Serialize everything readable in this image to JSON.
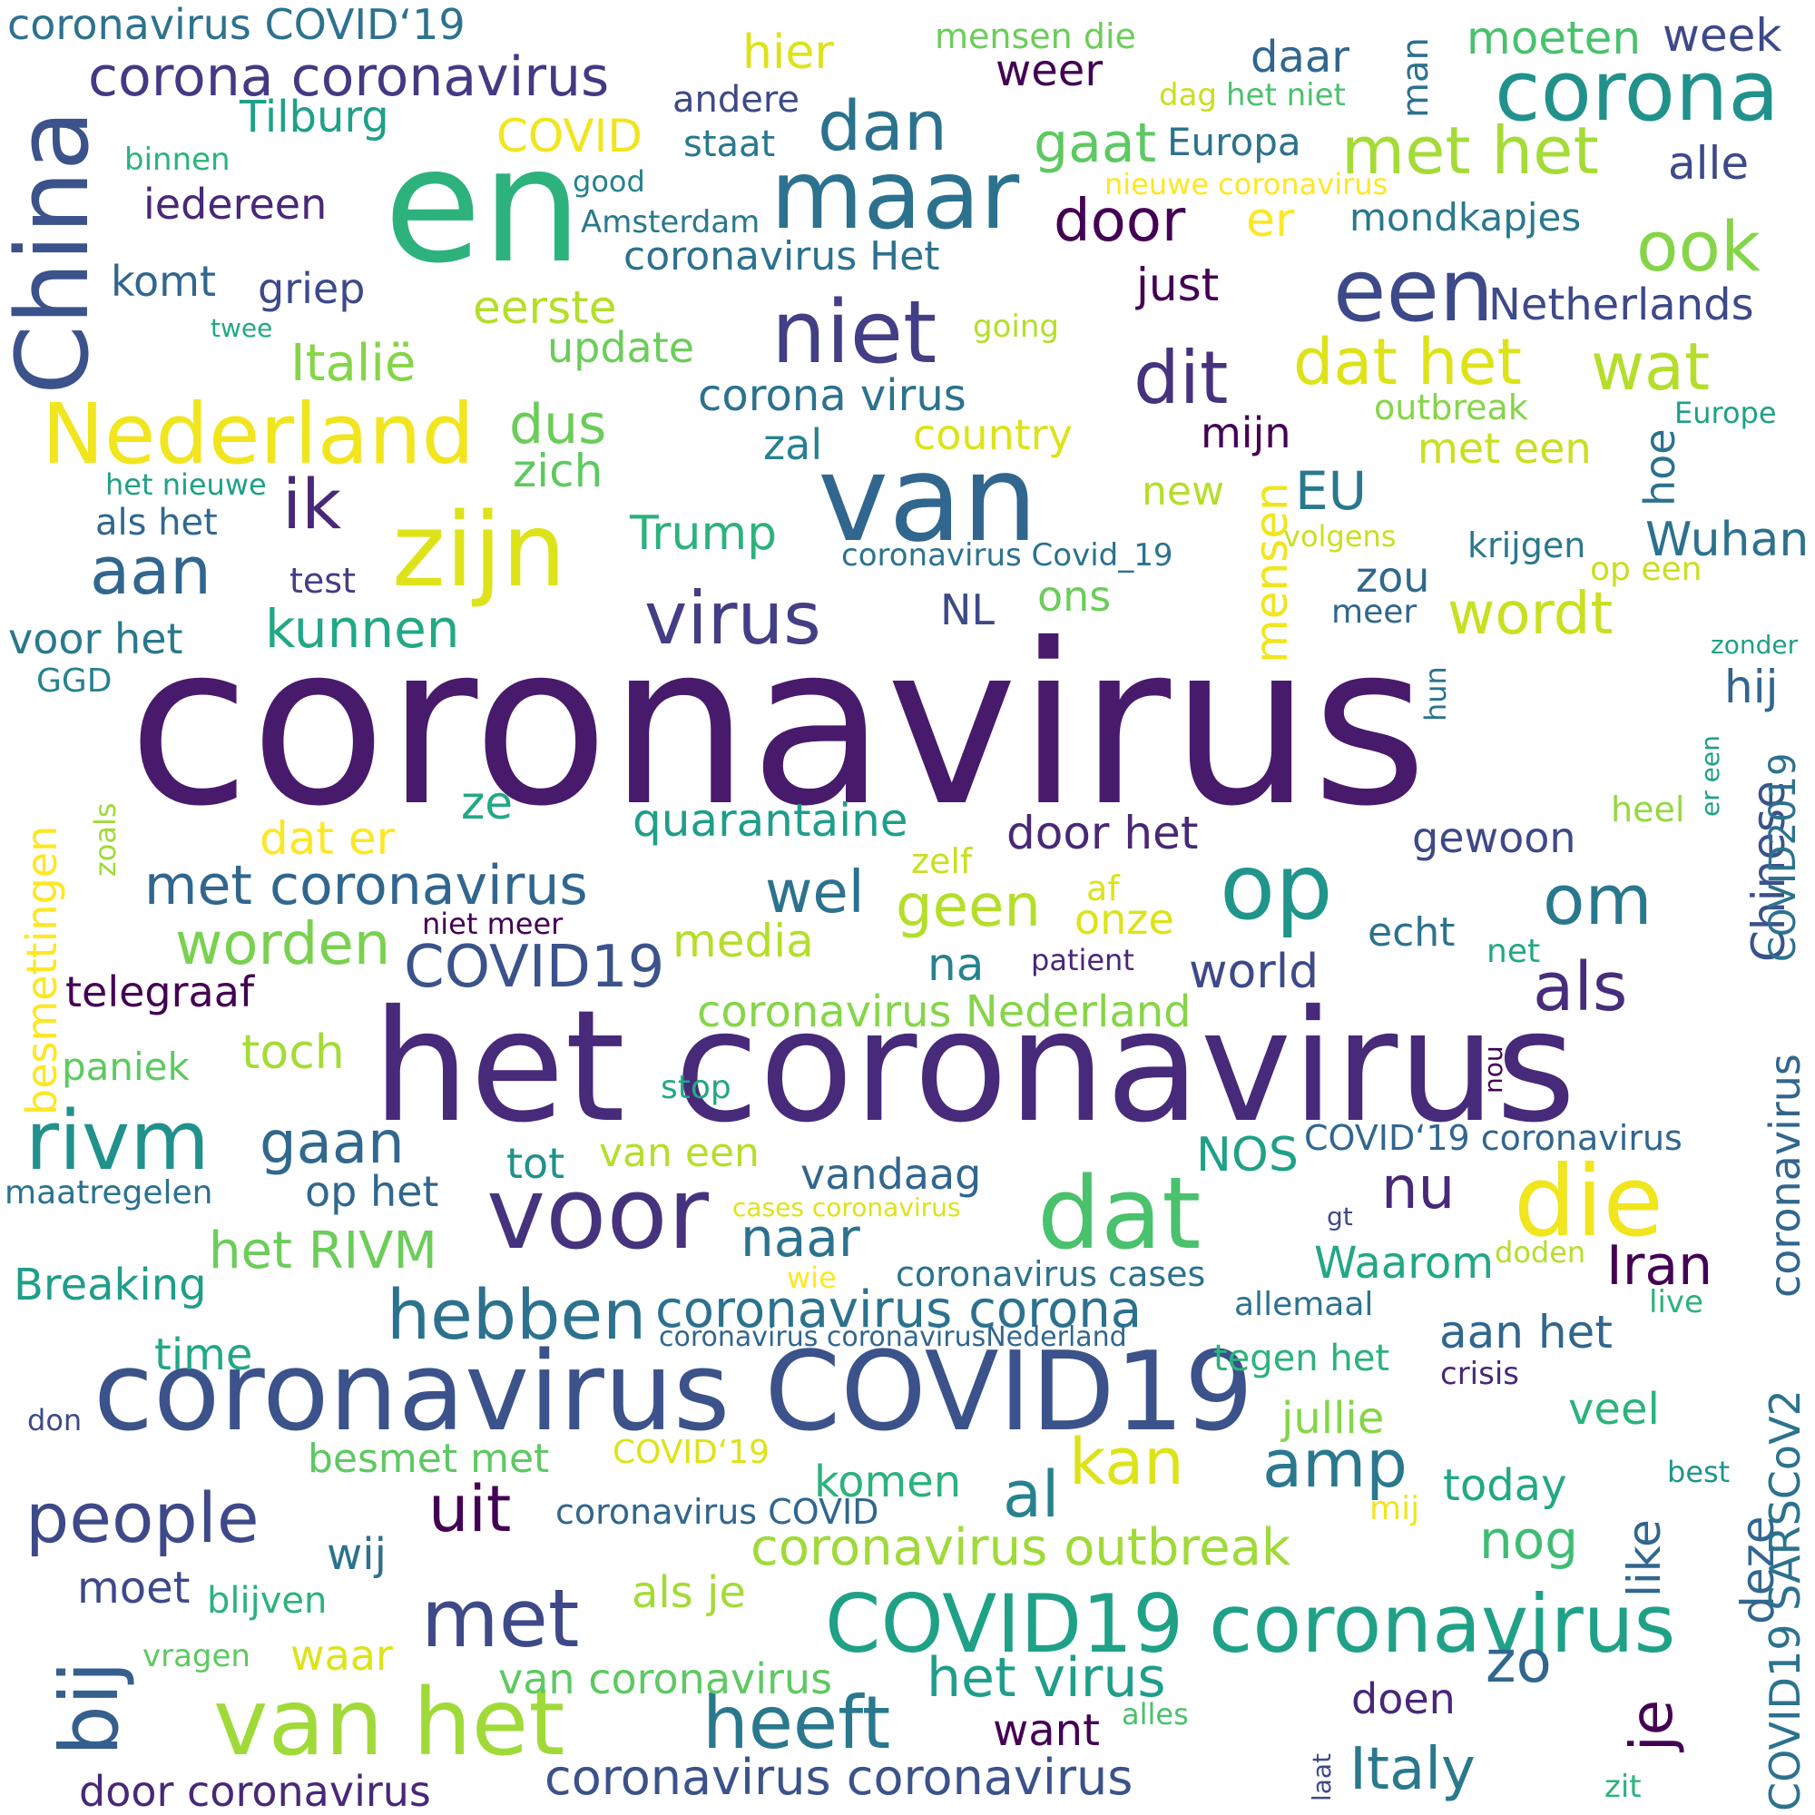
{
  "word_cloud": {
    "words": [
      {
        "text": "coronavirus",
        "color": "#481a6c"
      },
      {
        "text": "het coronavirus",
        "color": "#472a7a"
      },
      {
        "text": "en",
        "color": "#2db27d"
      },
      {
        "text": "van",
        "color": "#31668e"
      },
      {
        "text": "coronavirus COVID19",
        "color": "#3b528b"
      },
      {
        "text": "zijn",
        "color": "#dde318"
      },
      {
        "text": "maar",
        "color": "#2c728e"
      },
      {
        "text": "voor",
        "color": "#46337e"
      },
      {
        "text": "dat",
        "color": "#4ac16d"
      },
      {
        "text": "die",
        "color": "#f1e51d"
      },
      {
        "text": "van het",
        "color": "#a0da39"
      },
      {
        "text": "Nederland",
        "color": "#f1e51d"
      },
      {
        "text": "niet",
        "color": "#433e85"
      },
      {
        "text": "China",
        "color": "#3b528b"
      },
      {
        "text": "op",
        "color": "#1f958b"
      },
      {
        "text": "een",
        "color": "#3e4989"
      },
      {
        "text": "corona",
        "color": "#21918c"
      },
      {
        "text": "COVID19 coronavirus",
        "color": "#1fa187"
      },
      {
        "text": "rivm",
        "color": "#21918c"
      },
      {
        "text": "met",
        "color": "#3e4989"
      },
      {
        "text": "bij",
        "color": "#355f8d"
      },
      {
        "text": "virus",
        "color": "#433e85"
      },
      {
        "text": "heeft",
        "color": "#2a788e"
      },
      {
        "text": "people",
        "color": "#3e4989"
      },
      {
        "text": "hebben",
        "color": "#2c728e"
      },
      {
        "text": "dit",
        "color": "#46337e"
      },
      {
        "text": "aan",
        "color": "#31668e"
      },
      {
        "text": "dan",
        "color": "#2c728e"
      },
      {
        "text": "om",
        "color": "#2a788e"
      },
      {
        "text": "ik",
        "color": "#482878"
      },
      {
        "text": "als",
        "color": "#472d7b"
      },
      {
        "text": "met het",
        "color": "#a5db36"
      },
      {
        "text": "dat het",
        "color": "#dde318"
      },
      {
        "text": "wat",
        "color": "#b5de2b"
      },
      {
        "text": "ook",
        "color": "#86d549"
      },
      {
        "text": "amp",
        "color": "#2a788e"
      },
      {
        "text": "door",
        "color": "#440154"
      },
      {
        "text": "wordt",
        "color": "#c8e020"
      },
      {
        "text": "coronavirus outbreak",
        "color": "#a0da39"
      },
      {
        "text": "coronavirus corona",
        "color": "#2c728e"
      },
      {
        "text": "coronavirus coronavirus",
        "color": "#3b528b"
      },
      {
        "text": "uit",
        "color": "#440154"
      },
      {
        "text": "kan",
        "color": "#dde318"
      },
      {
        "text": "al",
        "color": "#26828e"
      },
      {
        "text": "gaan",
        "color": "#31688e"
      },
      {
        "text": "geen",
        "color": "#b5de2b"
      },
      {
        "text": "worden",
        "color": "#7ad151"
      },
      {
        "text": "COVID19",
        "color": "#3b528b"
      },
      {
        "text": "met coronavirus",
        "color": "#31668e"
      },
      {
        "text": "corona coronavirus",
        "color": "#443983"
      },
      {
        "text": "Iran",
        "color": "#440154"
      },
      {
        "text": "het virus",
        "color": "#1f9e89"
      },
      {
        "text": "Italy",
        "color": "#2a788e"
      },
      {
        "text": "zo",
        "color": "#31668e"
      },
      {
        "text": "wel",
        "color": "#2c728e"
      },
      {
        "text": "nu",
        "color": "#482878"
      },
      {
        "text": "je",
        "color": "#440154"
      },
      {
        "text": "Trump",
        "color": "#2db27d"
      },
      {
        "text": "dus",
        "color": "#6ccd5a"
      },
      {
        "text": "kunnen",
        "color": "#22a884"
      },
      {
        "text": "naar",
        "color": "#2c728e"
      },
      {
        "text": "EU",
        "color": "#2a788e"
      },
      {
        "text": "nog",
        "color": "#3fbc73"
      },
      {
        "text": "Wuhan",
        "color": "#2c728e"
      },
      {
        "text": "mensen",
        "color": "#f1e51d"
      },
      {
        "text": "Chinese",
        "color": "#3b528b"
      },
      {
        "text": "deze",
        "color": "#31668e"
      },
      {
        "text": "gaat",
        "color": "#5ec962"
      },
      {
        "text": "eerste",
        "color": "#b5de2b"
      },
      {
        "text": "Italië",
        "color": "#86d549"
      },
      {
        "text": "update",
        "color": "#6ccd5a"
      },
      {
        "text": "corona virus",
        "color": "#2c728e"
      },
      {
        "text": "zal",
        "color": "#26828e"
      },
      {
        "text": "country",
        "color": "#dde318"
      },
      {
        "text": "zich",
        "color": "#5ec962"
      },
      {
        "text": "mijn",
        "color": "#440154"
      },
      {
        "text": "met een",
        "color": "#c8e020"
      },
      {
        "text": "hoe",
        "color": "#2c728e"
      },
      {
        "text": "outbreak",
        "color": "#86d549"
      },
      {
        "text": "krijgen",
        "color": "#2a788e"
      },
      {
        "text": "zou",
        "color": "#31688e"
      },
      {
        "text": "ons",
        "color": "#6ccd5a"
      },
      {
        "text": "NL",
        "color": "#3e4989"
      },
      {
        "text": "test",
        "color": "#433e85"
      },
      {
        "text": "voor het",
        "color": "#2a788e"
      },
      {
        "text": "als het",
        "color": "#31688e"
      },
      {
        "text": "GGD",
        "color": "#26828e"
      },
      {
        "text": "besmettingen",
        "color": "#fde725"
      },
      {
        "text": "zoals",
        "color": "#a0da39"
      },
      {
        "text": "ze",
        "color": "#22a884"
      },
      {
        "text": "dat er",
        "color": "#fde725"
      },
      {
        "text": "quarantaine",
        "color": "#1f9e89"
      },
      {
        "text": "door het",
        "color": "#482878"
      },
      {
        "text": "gewoon",
        "color": "#3e4989"
      },
      {
        "text": "heel",
        "color": "#95d840"
      },
      {
        "text": "er een",
        "color": "#1fa187"
      },
      {
        "text": "zonder",
        "color": "#1fa187"
      },
      {
        "text": "hij",
        "color": "#31668e"
      },
      {
        "text": "COVID2019",
        "color": "#2c728e"
      },
      {
        "text": "zelf",
        "color": "#c8e020"
      },
      {
        "text": "af",
        "color": "#dde318"
      },
      {
        "text": "onze",
        "color": "#dde318"
      },
      {
        "text": "niet meer",
        "color": "#440154"
      },
      {
        "text": "patient",
        "color": "#482878"
      },
      {
        "text": "echt",
        "color": "#2c728e"
      },
      {
        "text": "net",
        "color": "#22a884"
      },
      {
        "text": "world",
        "color": "#3e4989"
      },
      {
        "text": "na",
        "color": "#26828e"
      },
      {
        "text": "media",
        "color": "#b5de2b"
      },
      {
        "text": "telegraaf",
        "color": "#440154"
      },
      {
        "text": "coronavirus Nederland",
        "color": "#86d549"
      },
      {
        "text": "toch",
        "color": "#a5db36"
      },
      {
        "text": "paniek",
        "color": "#5ec962"
      },
      {
        "text": "stop",
        "color": "#22a884"
      },
      {
        "text": "nou",
        "color": "#440154"
      },
      {
        "text": "tot",
        "color": "#21918c"
      },
      {
        "text": "van een",
        "color": "#b5de2b"
      },
      {
        "text": "vandaag",
        "color": "#31668e"
      },
      {
        "text": "NOS",
        "color": "#1fa187"
      },
      {
        "text": "COVID‘19 coronavirus",
        "color": "#31668e"
      },
      {
        "text": "op het",
        "color": "#31668e"
      },
      {
        "text": "maatregelen",
        "color": "#2c728e"
      },
      {
        "text": "cases coronavirus",
        "color": "#dde318"
      },
      {
        "text": "gt",
        "color": "#3e4989"
      },
      {
        "text": "het RIVM",
        "color": "#6ccd5a"
      },
      {
        "text": "Breaking",
        "color": "#1f9e89"
      },
      {
        "text": "Waarom",
        "color": "#22a884"
      },
      {
        "text": "doden",
        "color": "#b5de2b"
      },
      {
        "text": "wie",
        "color": "#fde725"
      },
      {
        "text": "coronavirus cases",
        "color": "#2c728e"
      },
      {
        "text": "allemaal",
        "color": "#2c728e"
      },
      {
        "text": "live",
        "color": "#2db27d"
      },
      {
        "text": "coronavirus coronavirusNederland",
        "color": "#31668e"
      },
      {
        "text": "aan het",
        "color": "#31668e"
      },
      {
        "text": "time",
        "color": "#22a884"
      },
      {
        "text": "tegen het",
        "color": "#2db27d"
      },
      {
        "text": "crisis",
        "color": "#482878"
      },
      {
        "text": "jullie",
        "color": "#86d549"
      },
      {
        "text": "veel",
        "color": "#2db27d"
      },
      {
        "text": "don",
        "color": "#3e4989"
      },
      {
        "text": "besmet met",
        "color": "#5ec962"
      },
      {
        "text": "COVID‘19",
        "color": "#dde318"
      },
      {
        "text": "komen",
        "color": "#2db27d"
      },
      {
        "text": "today",
        "color": "#22a884"
      },
      {
        "text": "best",
        "color": "#1f958b"
      },
      {
        "text": "like",
        "color": "#31668e"
      },
      {
        "text": "mij",
        "color": "#f1e51d"
      },
      {
        "text": "coronavirus COVID",
        "color": "#31668e"
      },
      {
        "text": "wij",
        "color": "#2c728e"
      },
      {
        "text": "moet",
        "color": "#3e4989"
      },
      {
        "text": "blijven",
        "color": "#2db27d"
      },
      {
        "text": "als je",
        "color": "#a5db36"
      },
      {
        "text": "vragen",
        "color": "#5ec962"
      },
      {
        "text": "waar",
        "color": "#dde318"
      },
      {
        "text": "van coronavirus",
        "color": "#5ec962"
      },
      {
        "text": "doen",
        "color": "#482878"
      },
      {
        "text": "want",
        "color": "#440154"
      },
      {
        "text": "alles",
        "color": "#4ac16d"
      },
      {
        "text": "laat",
        "color": "#3e4989"
      },
      {
        "text": "zit",
        "color": "#2db27d"
      },
      {
        "text": "door coronavirus",
        "color": "#482878"
      },
      {
        "text": "COVID19 SARSCoV2",
        "color": "#2c728e"
      },
      {
        "text": "coronavirus",
        "color": "#31668e"
      },
      {
        "text": "coronavirus COVID‘19",
        "color": "#2c728e"
      },
      {
        "text": "hier",
        "color": "#dde318"
      },
      {
        "text": "mensen die",
        "color": "#6ccd5a"
      },
      {
        "text": "daar",
        "color": "#31668e"
      },
      {
        "text": "man",
        "color": "#2c728e"
      },
      {
        "text": "moeten",
        "color": "#4ac16d"
      },
      {
        "text": "week",
        "color": "#3e4989"
      },
      {
        "text": "weer",
        "color": "#440154"
      },
      {
        "text": "Tilburg",
        "color": "#1fa187"
      },
      {
        "text": "andere",
        "color": "#3e4989"
      },
      {
        "text": "dag",
        "color": "#c8e020"
      },
      {
        "text": "het niet",
        "color": "#4ac16d"
      },
      {
        "text": "COVID",
        "color": "#f1e51d"
      },
      {
        "text": "staat",
        "color": "#2a788e"
      },
      {
        "text": "Europa",
        "color": "#2c728e"
      },
      {
        "text": "alle",
        "color": "#3e4989"
      },
      {
        "text": "binnen",
        "color": "#2db27d"
      },
      {
        "text": "iedereen",
        "color": "#482878"
      },
      {
        "text": "good",
        "color": "#26828e"
      },
      {
        "text": "nieuwe coronavirus",
        "color": "#fde725"
      },
      {
        "text": "Amsterdam",
        "color": "#2a788e"
      },
      {
        "text": "mondkapjes",
        "color": "#2a788e"
      },
      {
        "text": "er",
        "color": "#fde725"
      },
      {
        "text": "coronavirus Het",
        "color": "#2c728e"
      },
      {
        "text": "komt",
        "color": "#31668e"
      },
      {
        "text": "griep",
        "color": "#3e4989"
      },
      {
        "text": "just",
        "color": "#440154"
      },
      {
        "text": "Netherlands",
        "color": "#3e4989"
      },
      {
        "text": "twee",
        "color": "#22a884"
      },
      {
        "text": "going",
        "color": "#b5de2b"
      },
      {
        "text": "Europe",
        "color": "#1fa187"
      },
      {
        "text": "het nieuwe",
        "color": "#1fa187"
      },
      {
        "text": "new",
        "color": "#b5de2b"
      },
      {
        "text": "volgens",
        "color": "#c8e020"
      },
      {
        "text": "coronavirus Covid_19",
        "color": "#2c728e"
      },
      {
        "text": "op een",
        "color": "#c8e020"
      },
      {
        "text": "meer",
        "color": "#31668e"
      },
      {
        "text": "hun",
        "color": "#2c728e"
      },
      {
        "text": "coronavirus",
        "color": "#2c728e"
      }
    ]
  }
}
